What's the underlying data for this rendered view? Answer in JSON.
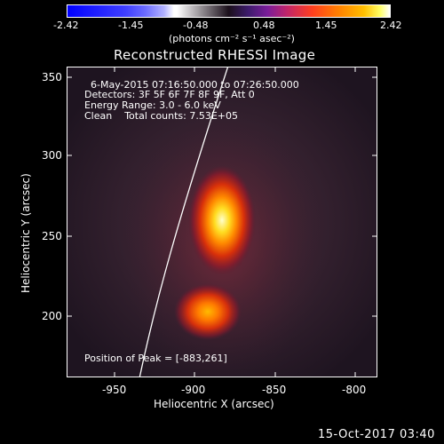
{
  "colorbar": {
    "ticks": [
      "-2.42",
      "-1.45",
      "-0.48",
      "0.48",
      "1.45",
      "2.42"
    ],
    "units": "(photons cm⁻² s⁻¹ asec⁻²)"
  },
  "title": "Reconstructed RHESSI Image",
  "info": {
    "time": "6-May-2015 07:16:50.000 to 07:26:50.000",
    "detectors": "Detectors: 3F 5F 6F 7F 8F 9F, Att 0",
    "energy": "Energy Range: 3.0 - 6.0 keV",
    "clean": "Clean    Total counts: 7.53E+05",
    "peak": "Position of Peak = [-883,261]"
  },
  "axes": {
    "xlabel": "Heliocentric X (arcsec)",
    "ylabel": "Heliocentric Y (arcsec)",
    "xticks": [
      "-950",
      "-900",
      "-850",
      "-800"
    ],
    "yticks": [
      "350",
      "300",
      "250",
      "200"
    ]
  },
  "footer": "15-Oct-2017 03:40",
  "colors": {
    "limb": "#ffffff",
    "background": "#000000"
  }
}
